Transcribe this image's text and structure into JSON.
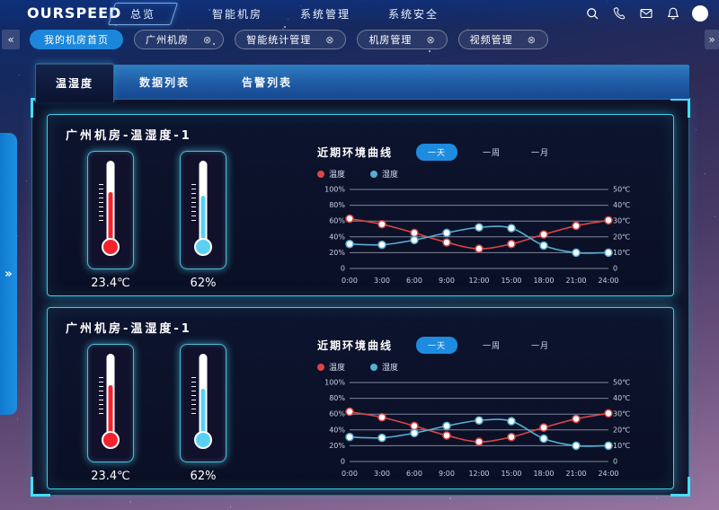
{
  "header": {
    "logo": "OURSPEED",
    "nav": [
      {
        "label": "总览",
        "active": true
      },
      {
        "label": "智能机房"
      },
      {
        "label": "系统管理"
      },
      {
        "label": "系统安全"
      }
    ],
    "icon_names": [
      "search",
      "phone",
      "mail",
      "bell",
      "avatar"
    ]
  },
  "tab_strip": {
    "scroll_left": "«",
    "scroll_right": "»",
    "close_glyph": "⊗",
    "tabs": [
      {
        "label": "我的机房首页",
        "active": true,
        "closable": false
      },
      {
        "label": "广州机房",
        "closable": true
      },
      {
        "label": "智能统计管理",
        "closable": true
      },
      {
        "label": "机房管理",
        "closable": true
      },
      {
        "label": "视频管理",
        "closable": true
      }
    ]
  },
  "sidebar_expander": {
    "glyph": "»"
  },
  "content_tabs": [
    {
      "label": "温湿度",
      "active": true
    },
    {
      "label": "数据列表"
    },
    {
      "label": "告警列表"
    }
  ],
  "accent_colors": {
    "active_blue": "#1b86da",
    "panel_border_cyan": "#3ecdea",
    "temperature_red": "#f5222d",
    "humidity_cyan": "#5ad0f5"
  },
  "panels": [
    {
      "title": "广州机房-温湿度-1",
      "thermometers": [
        {
          "kind": "temperature",
          "value": "23.4℃",
          "color": "#f5222d",
          "fill_level_pct": 62
        },
        {
          "kind": "humidity",
          "value": "62%",
          "color": "#5ad0f5",
          "fill_level_pct": 58
        }
      ],
      "chart_controls": {
        "ranges": [
          {
            "label": "一天",
            "active": true
          },
          {
            "label": "一周"
          },
          {
            "label": "一月"
          }
        ]
      }
    },
    {
      "title": "广州机房-温湿度-1",
      "thermometers": [
        {
          "kind": "temperature",
          "value": "23.4℃",
          "color": "#f5222d",
          "fill_level_pct": 62
        },
        {
          "kind": "humidity",
          "value": "62%",
          "color": "#5ad0f5",
          "fill_level_pct": 58
        }
      ],
      "chart_controls": {
        "ranges": [
          {
            "label": "一天",
            "active": true
          },
          {
            "label": "一周"
          },
          {
            "label": "一月"
          }
        ]
      }
    }
  ],
  "chart_data": [
    {
      "type": "line",
      "title": "近期环境曲线",
      "x": [
        "0:00",
        "3:00",
        "6:00",
        "9:00",
        "12:00",
        "15:00",
        "18:00",
        "21:00",
        "24:00"
      ],
      "y_left": {
        "ticks": [
          "100%",
          "80%",
          "60%",
          "40%",
          "20%",
          "0"
        ],
        "range": [
          0,
          100
        ],
        "unit": "%"
      },
      "y_right": {
        "ticks": [
          "50℃",
          "40℃",
          "30℃",
          "20℃",
          "10℃",
          "0"
        ],
        "range": [
          0,
          50
        ],
        "unit": "℃"
      },
      "grid": true,
      "legend_position": "top-left",
      "series": [
        {
          "name": "温度",
          "color": "#dd4545",
          "axis": "right",
          "unit": "℃",
          "values": [
            31.5,
            28,
            22.5,
            16.5,
            12.5,
            15.5,
            21.5,
            27,
            30.5
          ]
        },
        {
          "name": "湿度",
          "color": "#55aed6",
          "axis": "left",
          "unit": "%",
          "values": [
            31,
            30,
            36,
            45,
            52,
            51,
            29,
            20,
            20
          ]
        }
      ]
    },
    {
      "type": "line",
      "title": "近期环境曲线",
      "x": [
        "0:00",
        "3:00",
        "6:00",
        "9:00",
        "12:00",
        "15:00",
        "18:00",
        "21:00",
        "24:00"
      ],
      "y_left": {
        "ticks": [
          "100%",
          "80%",
          "60%",
          "40%",
          "20%",
          "0"
        ],
        "range": [
          0,
          100
        ],
        "unit": "%"
      },
      "y_right": {
        "ticks": [
          "50℃",
          "40℃",
          "30℃",
          "20℃",
          "10℃",
          "0"
        ],
        "range": [
          0,
          50
        ],
        "unit": "℃"
      },
      "grid": true,
      "legend_position": "top-left",
      "series": [
        {
          "name": "温度",
          "color": "#dd4545",
          "axis": "right",
          "unit": "℃",
          "values": [
            31.5,
            28,
            22.5,
            16.5,
            12.5,
            15.5,
            21.5,
            27,
            30.5
          ]
        },
        {
          "name": "湿度",
          "color": "#55aed6",
          "axis": "left",
          "unit": "%",
          "values": [
            31,
            30,
            36,
            45,
            52,
            51,
            29,
            20,
            20
          ]
        }
      ]
    }
  ]
}
